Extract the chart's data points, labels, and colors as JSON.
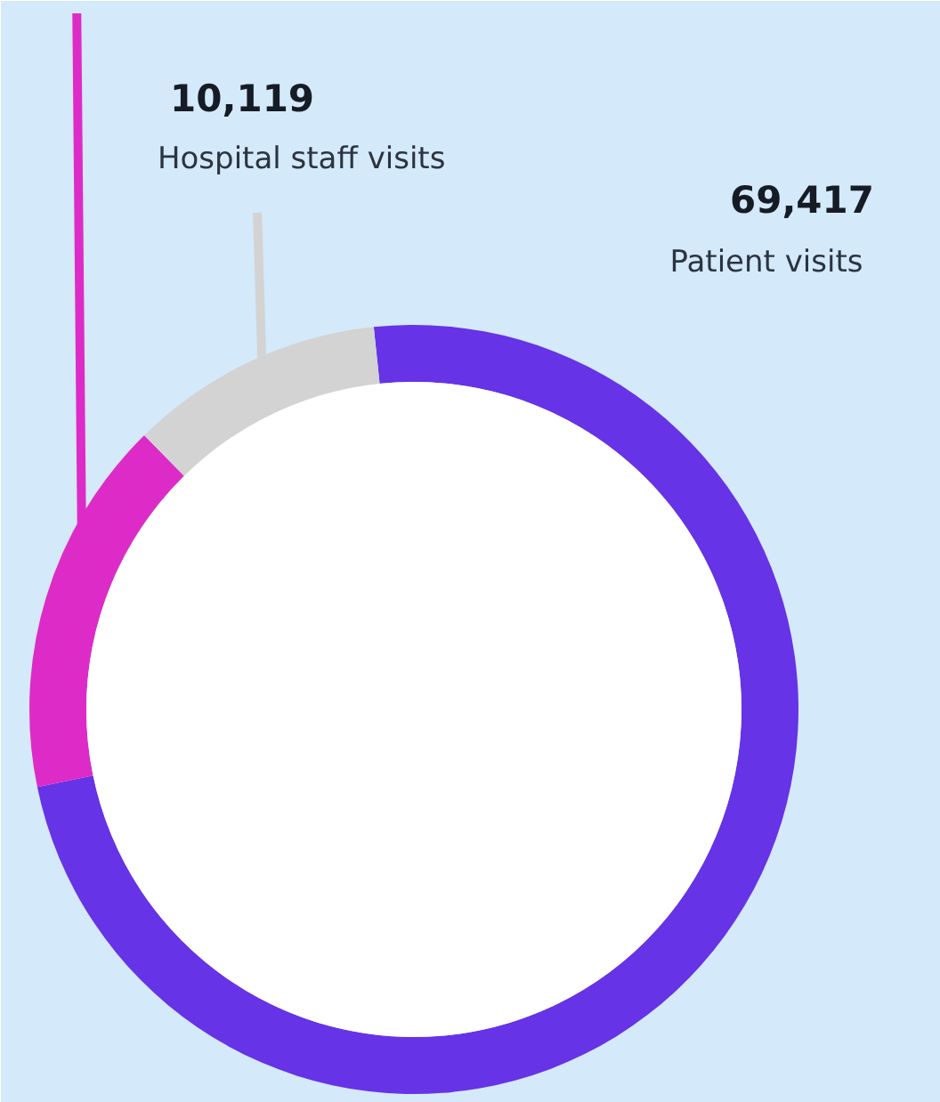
{
  "chart_data": {
    "type": "donut",
    "categories": [
      "Patient visits",
      null,
      "Hospital staff visits"
    ],
    "values": [
      69417,
      15000,
      10119
    ],
    "colors": [
      "#6633e6",
      "#dd2bc8",
      "#d3d3d3"
    ],
    "value_labels": [
      "69,417",
      null,
      "10,119"
    ]
  }
}
